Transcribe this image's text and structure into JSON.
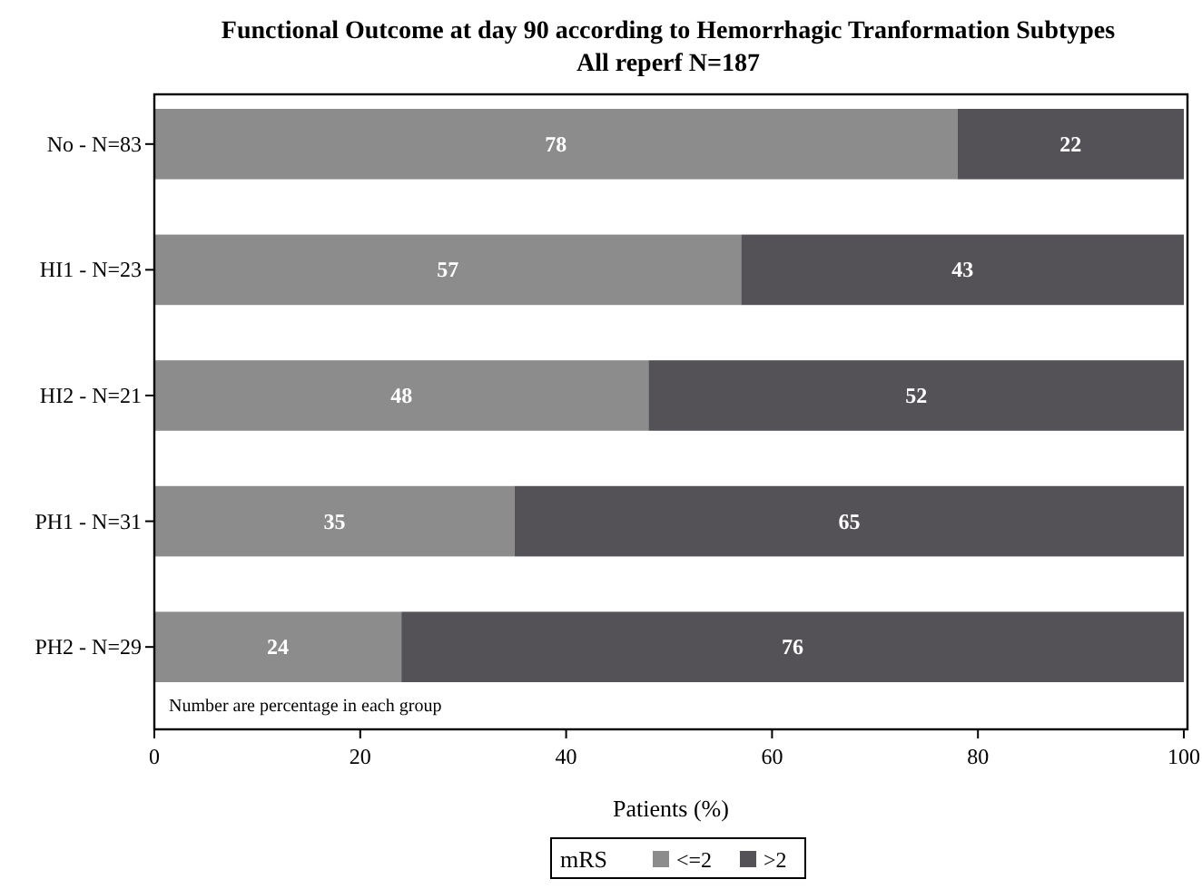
{
  "chart_data": {
    "type": "bar",
    "orientation": "horizontal",
    "stacked": true,
    "title": "Functional Outcome at day 90 according to Hemorrhagic Tranformation Subtypes",
    "subtitle": "All reperf N=187",
    "xlabel": "Patients (%)",
    "categories": [
      "No - N=83",
      "HI1 - N=23",
      "HI2 - N=21",
      "PH1 - N=31",
      "PH2 - N=29"
    ],
    "series": [
      {
        "name": "<=2",
        "color": "#8c8c8c",
        "values": [
          78,
          57,
          48,
          35,
          24
        ]
      },
      {
        "name": ">2",
        "color": "#555257",
        "values": [
          22,
          43,
          52,
          65,
          76
        ]
      }
    ],
    "xlim": [
      0,
      100
    ],
    "xticks": [
      0,
      20,
      40,
      60,
      80,
      100
    ],
    "data_labels": true,
    "legend": "bottom",
    "legend_title": "mRS",
    "grid": false,
    "annotations": [
      "Number are percentage in each group"
    ]
  }
}
